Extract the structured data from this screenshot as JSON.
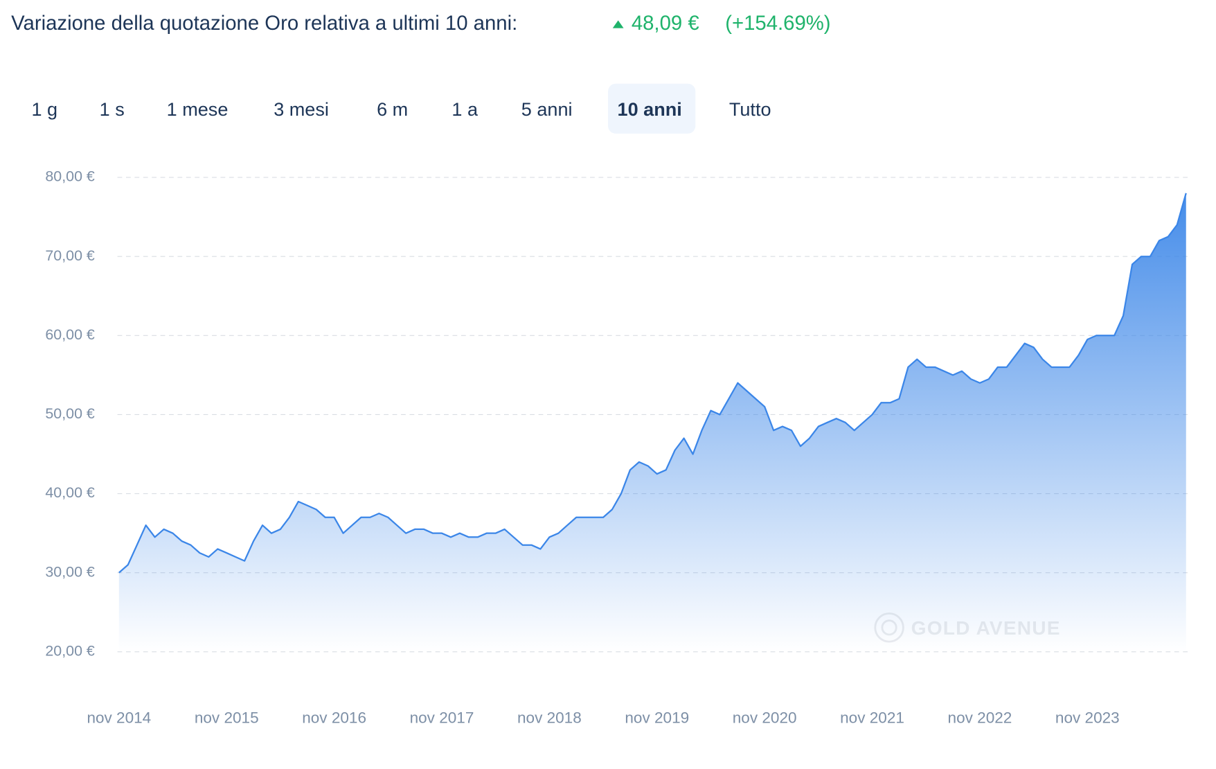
{
  "header": {
    "title": "Variazione della quotazione Oro relativa a ultimi 10 anni:",
    "change": "48,09 €",
    "percent": "(+154.69%)"
  },
  "tabs": [
    "1 g",
    "1 s",
    "1 mese",
    "3 mesi",
    "6 m",
    "1 a",
    "5 anni",
    "10 anni",
    "Tutto"
  ],
  "active_tab": "10 anni",
  "watermark": "GOLD AVENUE",
  "chart_data": {
    "type": "area",
    "color": "#3b86e8",
    "grid": true,
    "x": [
      "2014-11",
      "2014-12",
      "2015-01",
      "2015-02",
      "2015-03",
      "2015-04",
      "2015-05",
      "2015-06",
      "2015-07",
      "2015-08",
      "2015-09",
      "2015-10",
      "2015-11",
      "2015-12",
      "2016-01",
      "2016-02",
      "2016-03",
      "2016-04",
      "2016-05",
      "2016-06",
      "2016-07",
      "2016-08",
      "2016-09",
      "2016-10",
      "2016-11",
      "2016-12",
      "2017-01",
      "2017-02",
      "2017-03",
      "2017-04",
      "2017-05",
      "2017-06",
      "2017-07",
      "2017-08",
      "2017-09",
      "2017-10",
      "2017-11",
      "2017-12",
      "2018-01",
      "2018-02",
      "2018-03",
      "2018-04",
      "2018-05",
      "2018-06",
      "2018-07",
      "2018-08",
      "2018-09",
      "2018-10",
      "2018-11",
      "2018-12",
      "2019-01",
      "2019-02",
      "2019-03",
      "2019-04",
      "2019-05",
      "2019-06",
      "2019-07",
      "2019-08",
      "2019-09",
      "2019-10",
      "2019-11",
      "2019-12",
      "2020-01",
      "2020-02",
      "2020-03",
      "2020-04",
      "2020-05",
      "2020-06",
      "2020-07",
      "2020-08",
      "2020-09",
      "2020-10",
      "2020-11",
      "2020-12",
      "2021-01",
      "2021-02",
      "2021-03",
      "2021-04",
      "2021-05",
      "2021-06",
      "2021-07",
      "2021-08",
      "2021-09",
      "2021-10",
      "2021-11",
      "2021-12",
      "2022-01",
      "2022-02",
      "2022-03",
      "2022-04",
      "2022-05",
      "2022-06",
      "2022-07",
      "2022-08",
      "2022-09",
      "2022-10",
      "2022-11",
      "2022-12",
      "2023-01",
      "2023-02",
      "2023-03",
      "2023-04",
      "2023-05",
      "2023-06",
      "2023-07",
      "2023-08",
      "2023-09",
      "2023-10",
      "2023-11",
      "2023-12",
      "2024-01",
      "2024-02",
      "2024-03",
      "2024-04",
      "2024-05",
      "2024-06",
      "2024-07",
      "2024-08",
      "2024-09",
      "2024-10"
    ],
    "values": [
      30,
      31,
      33.5,
      36,
      34.5,
      35.5,
      35,
      34,
      33.5,
      32.5,
      32,
      33,
      32.5,
      32,
      31.5,
      34,
      36,
      35,
      35.5,
      37,
      39,
      38.5,
      38,
      37,
      37,
      35,
      36,
      37,
      37,
      37.5,
      37,
      36,
      35,
      35.5,
      35.5,
      35,
      35,
      34.5,
      35,
      34.5,
      34.5,
      35,
      35,
      35.5,
      34.5,
      33.5,
      33.5,
      33,
      34.5,
      35,
      36,
      37,
      37,
      37,
      37,
      38,
      40,
      43,
      44,
      43.5,
      42.5,
      43,
      45.5,
      47,
      45,
      48,
      50.5,
      50,
      52,
      54,
      53,
      52,
      51,
      48,
      48.5,
      48,
      46,
      47,
      48.5,
      49,
      49.5,
      49,
      48,
      49,
      50,
      51.5,
      51.5,
      52,
      56,
      57,
      56,
      56,
      55.5,
      55,
      55.5,
      54.5,
      54,
      54.5,
      56,
      56,
      57.5,
      59,
      58.5,
      57,
      56,
      56,
      56,
      57.5,
      59.5,
      60,
      60,
      60,
      62.5,
      69,
      70,
      70,
      72,
      72.5,
      74,
      78
    ],
    "ylim": [
      20,
      80
    ],
    "yticks": [
      {
        "value": 20,
        "label": "20,00 €"
      },
      {
        "value": 30,
        "label": "30,00 €"
      },
      {
        "value": 40,
        "label": "40,00 €"
      },
      {
        "value": 50,
        "label": "50,00 €"
      },
      {
        "value": 60,
        "label": "60,00 €"
      },
      {
        "value": 70,
        "label": "70,00 €"
      },
      {
        "value": 80,
        "label": "80,00 €"
      }
    ],
    "xticks": [
      {
        "value": "2014-11",
        "label": "nov 2014"
      },
      {
        "value": "2015-11",
        "label": "nov 2015"
      },
      {
        "value": "2016-11",
        "label": "nov 2016"
      },
      {
        "value": "2017-11",
        "label": "nov 2017"
      },
      {
        "value": "2018-11",
        "label": "nov 2018"
      },
      {
        "value": "2019-11",
        "label": "nov 2019"
      },
      {
        "value": "2020-11",
        "label": "nov 2020"
      },
      {
        "value": "2021-11",
        "label": "nov 2021"
      },
      {
        "value": "2022-11",
        "label": "nov 2022"
      },
      {
        "value": "2023-11",
        "label": "nov 2023"
      }
    ]
  }
}
